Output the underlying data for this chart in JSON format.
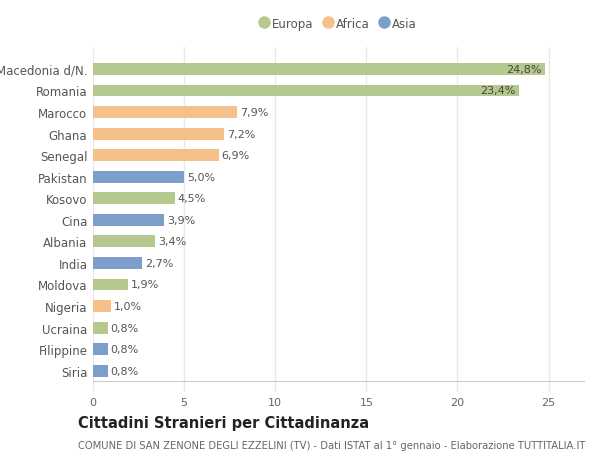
{
  "categories": [
    "Siria",
    "Filippine",
    "Ucraina",
    "Nigeria",
    "Moldova",
    "India",
    "Albania",
    "Cina",
    "Kosovo",
    "Pakistan",
    "Senegal",
    "Ghana",
    "Marocco",
    "Romania",
    "Macedonia d/N."
  ],
  "values": [
    0.8,
    0.8,
    0.8,
    1.0,
    1.9,
    2.7,
    3.4,
    3.9,
    4.5,
    5.0,
    6.9,
    7.2,
    7.9,
    23.4,
    24.8
  ],
  "continents": [
    "Asia",
    "Asia",
    "Europa",
    "Africa",
    "Europa",
    "Asia",
    "Europa",
    "Asia",
    "Europa",
    "Asia",
    "Africa",
    "Africa",
    "Africa",
    "Europa",
    "Europa"
  ],
  "colors": {
    "Europa": "#b5c98e",
    "Africa": "#f5c08a",
    "Asia": "#7b9fca"
  },
  "labels": [
    "0,8%",
    "0,8%",
    "0,8%",
    "1,0%",
    "1,9%",
    "2,7%",
    "3,4%",
    "3,9%",
    "4,5%",
    "5,0%",
    "6,9%",
    "7,2%",
    "7,9%",
    "23,4%",
    "24,8%"
  ],
  "title": "Cittadini Stranieri per Cittadinanza",
  "subtitle": "COMUNE DI SAN ZENONE DEGLI EZZELINI (TV) - Dati ISTAT al 1° gennaio - Elaborazione TUTTITALIA.IT",
  "xlim": [
    0,
    27
  ],
  "xticks": [
    0,
    5,
    10,
    15,
    20,
    25
  ],
  "background_color": "#ffffff",
  "plot_bg_color": "#ffffff",
  "grid_color": "#e8e8e8",
  "legend_items": [
    "Europa",
    "Africa",
    "Asia"
  ],
  "bar_height": 0.55,
  "label_fontsize": 8.0,
  "tick_fontsize": 8.0,
  "ylabel_fontsize": 8.5,
  "title_fontsize": 10.5,
  "subtitle_fontsize": 7.2,
  "inside_label_threshold": 20.0
}
